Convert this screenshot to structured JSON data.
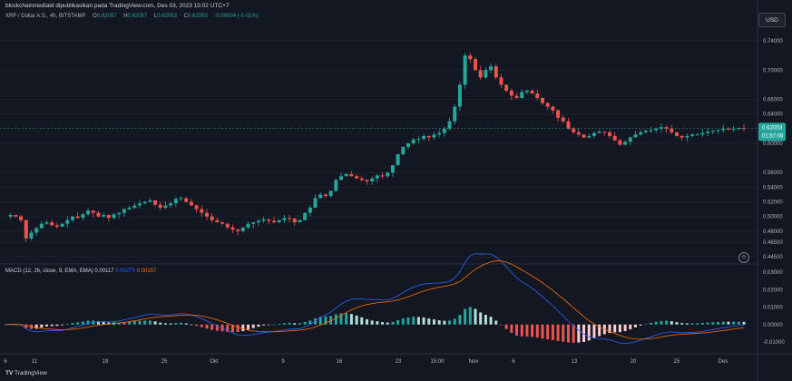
{
  "header": {
    "publisher_line": "blockchainmediaid dipublikasikan pada TradingView.com, Des 03, 2023 15:02 UTC+7"
  },
  "legend": {
    "symbol": "XRP / Dollar A.S., 4h, BITSTAMP",
    "open_label": "O",
    "open": "0.62057",
    "high_label": "H",
    "high": "0.62057",
    "low_label": "L",
    "low": "0.62053",
    "close_label": "C",
    "close": "0.62053",
    "change": "-0.00004 (-0.01%)"
  },
  "currency_button": "USD",
  "price_axis": {
    "labels": [
      "0.74000",
      "0.70000",
      "0.66000",
      "0.64000",
      "0.60000",
      "0.56000",
      "0.54000",
      "0.52000",
      "0.50000",
      "0.48000",
      "0.46500",
      "0.44500"
    ],
    "current_price": "0.62053",
    "countdown": "01:57:08"
  },
  "macd": {
    "title": "MACD (12, 26, close, 9, EMA, EMA)",
    "hist": "0.00117",
    "macd": "0.00275",
    "signal": "0.00157",
    "axis_labels": [
      "0.03000",
      "0.02000",
      "0.01000",
      "0.00000",
      "-0.01000"
    ]
  },
  "time_axis": {
    "labels": [
      "6",
      "11",
      "18",
      "25",
      "Okt",
      "9",
      "16",
      "23",
      "15:00",
      "Nov",
      "6",
      "13",
      "20",
      "25",
      "Des"
    ]
  },
  "footer": {
    "logo_text": "TradingView"
  },
  "colors": {
    "up": "#26a69a",
    "down": "#ef5350",
    "macd_line": "#2962ff",
    "signal_line": "#ff6d00",
    "background": "#131722"
  },
  "chart_data": {
    "type": "candlestick",
    "symbol": "XRP / Dollar A.S.",
    "interval": "4h",
    "approx_close_path": [
      [
        0.5,
        0.502,
        0.5,
        0.495,
        0.47,
        0.478,
        0.484,
        0.49,
        0.492,
        0.488,
        0.486,
        0.49,
        0.495,
        0.5,
        0.498,
        0.503,
        0.508,
        0.505,
        0.5,
        0.502,
        0.498,
        0.503,
        0.505,
        0.51,
        0.512,
        0.515,
        0.518,
        0.52,
        0.522,
        0.516,
        0.512,
        0.515,
        0.518,
        0.524,
        0.525,
        0.52,
        0.515,
        0.51,
        0.505,
        0.5,
        0.495,
        0.492,
        0.49,
        0.485,
        0.482,
        0.48,
        0.485,
        0.49,
        0.492,
        0.494,
        0.496,
        0.494,
        0.492,
        0.495,
        0.498,
        0.497,
        0.492,
        0.495,
        0.505,
        0.512,
        0.525,
        0.53,
        0.528,
        0.535,
        0.55,
        0.555,
        0.558,
        0.555,
        0.552,
        0.55,
        0.548,
        0.552,
        0.556,
        0.555,
        0.56,
        0.57,
        0.585,
        0.595,
        0.6,
        0.605,
        0.606,
        0.61,
        0.608,
        0.612,
        0.614,
        0.62,
        0.63,
        0.65,
        0.68,
        0.72,
        0.715,
        0.7,
        0.69,
        0.7,
        0.705,
        0.69,
        0.68,
        0.672,
        0.665,
        0.662,
        0.67,
        0.672,
        0.668,
        0.662,
        0.655,
        0.65,
        0.645,
        0.635,
        0.63,
        0.62,
        0.615,
        0.612,
        0.608,
        0.61,
        0.614,
        0.616,
        0.615,
        0.61,
        0.604,
        0.598,
        0.602,
        0.608,
        0.612,
        0.615,
        0.617,
        0.618,
        0.62,
        0.622,
        0.62,
        0.615,
        0.61,
        0.608,
        0.61,
        0.612,
        0.612,
        0.614,
        0.616,
        0.617,
        0.618,
        0.62,
        0.619,
        0.62,
        0.621,
        0.62053
      ]
    ]
  }
}
